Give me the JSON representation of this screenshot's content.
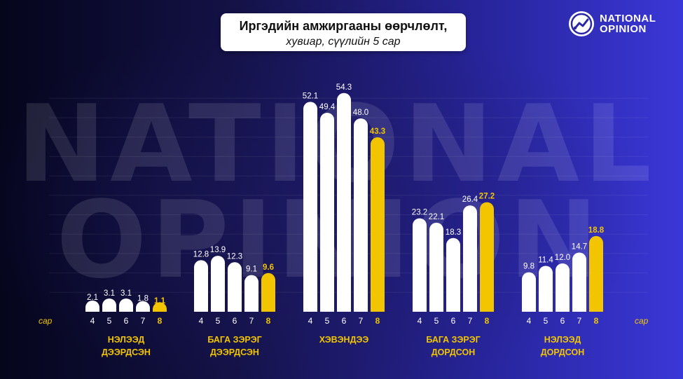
{
  "header": {
    "title_line1": "Иргэдийн амжиргааны өөрчлөлт,",
    "title_line2": "хувиар, сүүлийн 5 сар"
  },
  "logo": {
    "line1": "NATIONAL",
    "line2": "OPINION",
    "icon": "trend-chart-icon"
  },
  "watermark": {
    "line1": "NATIONAL",
    "line2": "OPINION"
  },
  "colors": {
    "bar": "#ffffff",
    "highlight": "#f2c500",
    "text": "#ffffff"
  },
  "chart_data": {
    "type": "bar",
    "title": "Иргэдийн амжиргааны өөрчлөлт, хувиар, сүүлийн 5 сар",
    "x_unit_label": "сар",
    "months": [
      "4",
      "5",
      "6",
      "7",
      "8"
    ],
    "highlight_month": "8",
    "groups": [
      {
        "label_lines": [
          "НЭЛЭЭД",
          "ДЭЭРДСЭН"
        ],
        "values": [
          2.1,
          3.1,
          3.1,
          1.8,
          1.1
        ]
      },
      {
        "label_lines": [
          "БАГА ЗЭРЭГ",
          "ДЭЭРДСЭН"
        ],
        "values": [
          12.8,
          13.9,
          12.3,
          9.1,
          9.6
        ]
      },
      {
        "label_lines": [
          "ХЭВЭНДЭЭ"
        ],
        "values": [
          52.1,
          49.4,
          54.3,
          48.0,
          43.3
        ]
      },
      {
        "label_lines": [
          "БАГА ЗЭРЭГ",
          "ДОРДСОН"
        ],
        "values": [
          23.2,
          22.1,
          18.3,
          26.4,
          27.2
        ]
      },
      {
        "label_lines": [
          "НЭЛЭЭД",
          "ДОРДСОН"
        ],
        "values": [
          9.8,
          11.4,
          12.0,
          14.7,
          18.8
        ]
      }
    ],
    "ylim": [
      0,
      60
    ],
    "grid": true,
    "legend": "none"
  }
}
